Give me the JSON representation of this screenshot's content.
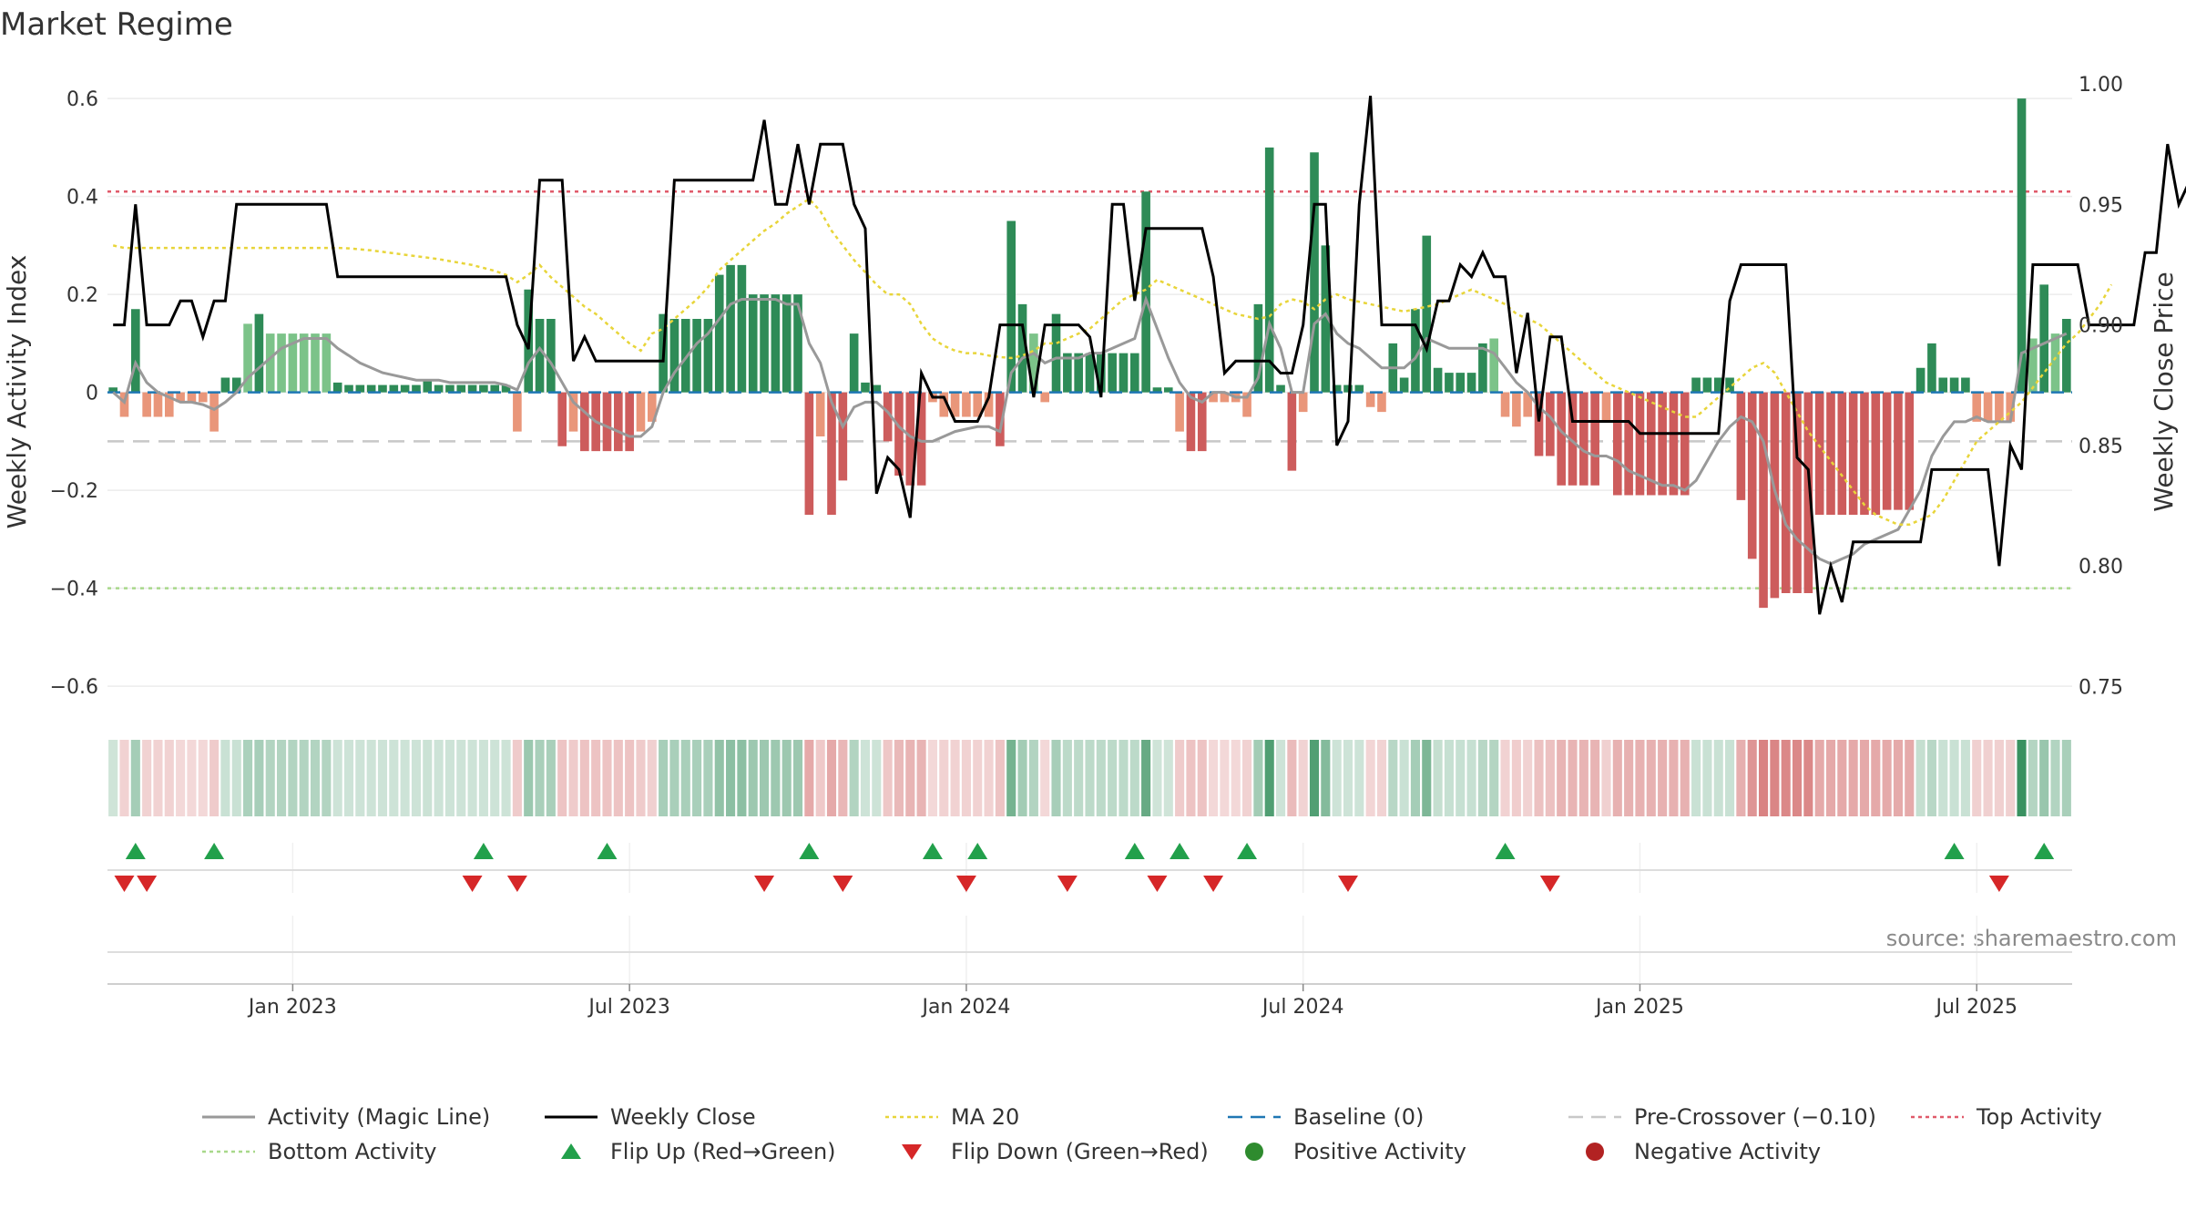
{
  "chart_data": {
    "type": "bar",
    "title": "Market Regime",
    "ylabel": "Weekly Activity Index",
    "y2label": "Weekly Close Price",
    "source": "source: sharemaestro.com",
    "ylim": [
      -0.65,
      0.63
    ],
    "y2lim": [
      0.74,
      1.0
    ],
    "yticks": [
      {
        "v": 0.6,
        "label": "0.6"
      },
      {
        "v": 0.4,
        "label": "0.4"
      },
      {
        "v": 0.2,
        "label": "0.2"
      },
      {
        "v": 0,
        "label": "0"
      },
      {
        "v": -0.2,
        "label": "−0.2"
      },
      {
        "v": -0.4,
        "label": "−0.4"
      },
      {
        "v": -0.6,
        "label": "−0.6"
      }
    ],
    "y2ticks": [
      {
        "v": 1.0,
        "label": "1.00"
      },
      {
        "v": 0.95,
        "label": "0.95"
      },
      {
        "v": 0.9,
        "label": "0.90"
      },
      {
        "v": 0.85,
        "label": "0.85"
      },
      {
        "v": 0.8,
        "label": "0.80"
      },
      {
        "v": 0.75,
        "label": "0.75"
      }
    ],
    "xticks": [
      {
        "i": 16,
        "label": "Jan 2023"
      },
      {
        "i": 46,
        "label": "Jul 2023"
      },
      {
        "i": 76,
        "label": "Jan 2024"
      },
      {
        "i": 106,
        "label": "Jul 2024"
      },
      {
        "i": 136,
        "label": "Jan 2025"
      },
      {
        "i": 166,
        "label": "Jul 2025"
      }
    ],
    "levels": {
      "top": 0.41,
      "bottom": -0.4,
      "pre_crossover": -0.1,
      "baseline": 0
    },
    "colors": {
      "strong_pos": "#2e8b57",
      "pos": "#7cc389",
      "strong_neg": "#cd5c5c",
      "neg": "#e9967a",
      "close": "#000000",
      "magic": "#999999",
      "ma": "#e8d53a",
      "top": "#e05a6a",
      "bottom": "#a8d88a",
      "pre": "#c8c8c8",
      "baseline": "#1f77b4",
      "flip_up": "#22a04b",
      "flip_down": "#d62728",
      "neg_marker": "#b22222"
    },
    "activity": [
      0.01,
      -0.05,
      0.17,
      -0.05,
      -0.05,
      -0.05,
      -0.02,
      -0.02,
      -0.02,
      -0.08,
      0.03,
      0.03,
      0.14,
      0.16,
      0.12,
      0.12,
      0.12,
      0.12,
      0.12,
      0.12,
      0.02,
      0.015,
      0.015,
      0.015,
      0.015,
      0.015,
      0.015,
      0.015,
      0.025,
      0.015,
      0.015,
      0.015,
      0.015,
      0.015,
      0.015,
      0.015,
      -0.08,
      0.21,
      0.15,
      0.15,
      -0.11,
      -0.08,
      -0.12,
      -0.12,
      -0.12,
      -0.12,
      -0.12,
      -0.08,
      -0.06,
      0.16,
      0.15,
      0.15,
      0.15,
      0.15,
      0.24,
      0.26,
      0.26,
      0.2,
      0.2,
      0.2,
      0.2,
      0.2,
      -0.25,
      -0.09,
      -0.25,
      -0.18,
      0.12,
      0.02,
      0.015,
      -0.1,
      -0.17,
      -0.19,
      -0.19,
      -0.02,
      -0.05,
      -0.05,
      -0.05,
      -0.05,
      -0.05,
      -0.11,
      0.35,
      0.18,
      0.12,
      -0.02,
      0.16,
      0.08,
      0.08,
      0.08,
      0.08,
      0.08,
      0.08,
      0.08,
      0.41,
      0.01,
      0.01,
      -0.08,
      -0.12,
      -0.12,
      -0.02,
      -0.02,
      -0.02,
      -0.05,
      0.18,
      0.5,
      0.015,
      -0.16,
      -0.04,
      0.49,
      0.3,
      0.015,
      0.015,
      0.015,
      -0.03,
      -0.04,
      0.1,
      0.03,
      0.17,
      0.32,
      0.05,
      0.04,
      0.04,
      0.04,
      0.1,
      0.11,
      -0.05,
      -0.07,
      -0.05,
      -0.13,
      -0.13,
      -0.19,
      -0.19,
      -0.19,
      -0.19,
      -0.06,
      -0.21,
      -0.21,
      -0.21,
      -0.21,
      -0.21,
      -0.21,
      -0.21,
      0.03,
      0.03,
      0.03,
      0.03,
      -0.22,
      -0.34,
      -0.44,
      -0.42,
      -0.41,
      -0.41,
      -0.41,
      -0.25,
      -0.25,
      -0.25,
      -0.25,
      -0.25,
      -0.25,
      -0.24,
      -0.24,
      -0.24,
      0.05,
      0.1,
      0.03,
      0.03,
      0.03,
      -0.06,
      -0.06,
      -0.06,
      -0.06,
      0.6,
      0.11,
      0.22,
      0.12,
      0.15
    ],
    "close": [
      0.9,
      0.9,
      0.95,
      0.9,
      0.9,
      0.9,
      0.91,
      0.91,
      0.895,
      0.91,
      0.91,
      0.95,
      0.95,
      0.95,
      0.95,
      0.95,
      0.95,
      0.95,
      0.95,
      0.95,
      0.92,
      0.92,
      0.92,
      0.92,
      0.92,
      0.92,
      0.92,
      0.92,
      0.92,
      0.92,
      0.92,
      0.92,
      0.92,
      0.92,
      0.92,
      0.92,
      0.9,
      0.89,
      0.96,
      0.96,
      0.96,
      0.885,
      0.895,
      0.885,
      0.885,
      0.885,
      0.885,
      0.885,
      0.885,
      0.885,
      0.96,
      0.96,
      0.96,
      0.96,
      0.96,
      0.96,
      0.96,
      0.96,
      0.985,
      0.95,
      0.95,
      0.975,
      0.95,
      0.975,
      0.975,
      0.975,
      0.95,
      0.94,
      0.83,
      0.845,
      0.84,
      0.82,
      0.88,
      0.87,
      0.87,
      0.86,
      0.86,
      0.86,
      0.87,
      0.9,
      0.9,
      0.9,
      0.87,
      0.9,
      0.9,
      0.9,
      0.9,
      0.895,
      0.87,
      0.95,
      0.95,
      0.91,
      0.94,
      0.94,
      0.94,
      0.94,
      0.94,
      0.94,
      0.92,
      0.88,
      0.885,
      0.885,
      0.885,
      0.885,
      0.88,
      0.88,
      0.9,
      0.95,
      0.95,
      0.85,
      0.86,
      0.95,
      0.995,
      0.9,
      0.9,
      0.9,
      0.9,
      0.89,
      0.91,
      0.91,
      0.925,
      0.92,
      0.93,
      0.92,
      0.92,
      0.88,
      0.905,
      0.86,
      0.895,
      0.895,
      0.86,
      0.86,
      0.86,
      0.86,
      0.86,
      0.86,
      0.855,
      0.855,
      0.855,
      0.855,
      0.855,
      0.855,
      0.855,
      0.855,
      0.91,
      0.925,
      0.925,
      0.925,
      0.925,
      0.925,
      0.845,
      0.84,
      0.78,
      0.8,
      0.785,
      0.81,
      0.81,
      0.81,
      0.81,
      0.81,
      0.81,
      0.81,
      0.84,
      0.84,
      0.84,
      0.84,
      0.84,
      0.84,
      0.8,
      0.85,
      0.84,
      0.925,
      0.925,
      0.925,
      0.925,
      0.925,
      0.9,
      0.9,
      0.9,
      0.9,
      0.9,
      0.93,
      0.93,
      0.975,
      0.95,
      0.96
    ],
    "magic": [
      0.0,
      -0.02,
      0.06,
      0.02,
      0.0,
      -0.01,
      -0.02,
      -0.02,
      -0.025,
      -0.035,
      -0.02,
      0.0,
      0.03,
      0.05,
      0.07,
      0.09,
      0.1,
      0.11,
      0.11,
      0.11,
      0.09,
      0.075,
      0.06,
      0.05,
      0.04,
      0.035,
      0.03,
      0.025,
      0.025,
      0.025,
      0.02,
      0.02,
      0.02,
      0.02,
      0.02,
      0.015,
      0.005,
      0.06,
      0.09,
      0.06,
      0.02,
      -0.02,
      -0.04,
      -0.06,
      -0.07,
      -0.08,
      -0.09,
      -0.09,
      -0.07,
      0.0,
      0.04,
      0.07,
      0.1,
      0.12,
      0.15,
      0.18,
      0.19,
      0.19,
      0.19,
      0.19,
      0.18,
      0.18,
      0.1,
      0.06,
      -0.02,
      -0.07,
      -0.03,
      -0.02,
      -0.02,
      -0.04,
      -0.07,
      -0.09,
      -0.1,
      -0.1,
      -0.09,
      -0.08,
      -0.075,
      -0.07,
      -0.07,
      -0.08,
      0.04,
      0.07,
      0.08,
      0.06,
      0.07,
      0.07,
      0.07,
      0.08,
      0.08,
      0.09,
      0.1,
      0.11,
      0.19,
      0.13,
      0.07,
      0.02,
      -0.01,
      -0.02,
      0.0,
      0.0,
      -0.01,
      -0.01,
      0.03,
      0.14,
      0.09,
      0.0,
      0.0,
      0.14,
      0.16,
      0.12,
      0.1,
      0.09,
      0.07,
      0.05,
      0.05,
      0.05,
      0.07,
      0.11,
      0.1,
      0.09,
      0.09,
      0.09,
      0.09,
      0.08,
      0.05,
      0.02,
      0.0,
      -0.03,
      -0.05,
      -0.08,
      -0.1,
      -0.12,
      -0.13,
      -0.13,
      -0.14,
      -0.16,
      -0.17,
      -0.18,
      -0.19,
      -0.19,
      -0.2,
      -0.18,
      -0.14,
      -0.1,
      -0.07,
      -0.05,
      -0.06,
      -0.1,
      -0.2,
      -0.27,
      -0.3,
      -0.32,
      -0.34,
      -0.35,
      -0.34,
      -0.33,
      -0.31,
      -0.3,
      -0.29,
      -0.28,
      -0.24,
      -0.2,
      -0.13,
      -0.09,
      -0.06,
      -0.06,
      -0.05,
      -0.06,
      -0.06,
      -0.06,
      0.08,
      0.09,
      0.1,
      0.11,
      0.12
    ],
    "ma": [
      0.3,
      0.295,
      0.295,
      0.295,
      0.295,
      0.295,
      0.295,
      0.295,
      0.295,
      0.295,
      0.295,
      0.295,
      0.295,
      0.295,
      0.295,
      0.295,
      0.295,
      0.295,
      0.295,
      0.295,
      0.295,
      0.294,
      0.292,
      0.29,
      0.287,
      0.284,
      0.281,
      0.278,
      0.275,
      0.272,
      0.268,
      0.264,
      0.26,
      0.254,
      0.248,
      0.24,
      0.225,
      0.24,
      0.26,
      0.235,
      0.215,
      0.195,
      0.175,
      0.16,
      0.14,
      0.12,
      0.1,
      0.085,
      0.12,
      0.13,
      0.15,
      0.17,
      0.19,
      0.215,
      0.25,
      0.27,
      0.29,
      0.31,
      0.33,
      0.345,
      0.365,
      0.38,
      0.395,
      0.37,
      0.33,
      0.3,
      0.27,
      0.245,
      0.22,
      0.2,
      0.2,
      0.18,
      0.14,
      0.11,
      0.095,
      0.085,
      0.08,
      0.08,
      0.075,
      0.072,
      0.07,
      0.075,
      0.085,
      0.1,
      0.1,
      0.11,
      0.12,
      0.13,
      0.15,
      0.17,
      0.19,
      0.2,
      0.21,
      0.23,
      0.22,
      0.21,
      0.2,
      0.19,
      0.18,
      0.17,
      0.16,
      0.155,
      0.15,
      0.155,
      0.18,
      0.19,
      0.185,
      0.17,
      0.19,
      0.2,
      0.19,
      0.185,
      0.18,
      0.175,
      0.17,
      0.165,
      0.17,
      0.175,
      0.18,
      0.19,
      0.2,
      0.21,
      0.2,
      0.19,
      0.18,
      0.16,
      0.15,
      0.14,
      0.12,
      0.1,
      0.08,
      0.06,
      0.04,
      0.02,
      0.01,
      0.0,
      -0.01,
      -0.02,
      -0.03,
      -0.04,
      -0.05,
      -0.05,
      -0.03,
      -0.01,
      0.01,
      0.03,
      0.05,
      0.06,
      0.04,
      0.0,
      -0.04,
      -0.08,
      -0.11,
      -0.14,
      -0.17,
      -0.2,
      -0.23,
      -0.25,
      -0.26,
      -0.27,
      -0.27,
      -0.26,
      -0.25,
      -0.22,
      -0.18,
      -0.14,
      -0.1,
      -0.08,
      -0.06,
      -0.04,
      -0.02,
      0.01,
      0.04,
      0.07,
      0.1,
      0.12,
      0.15,
      0.18,
      0.22
    ],
    "flip_up": [
      2,
      9,
      33,
      44,
      62,
      73,
      77,
      91,
      95,
      101,
      124,
      164,
      172
    ],
    "flip_down": [
      1,
      3,
      32,
      36,
      58,
      65,
      76,
      85,
      93,
      98,
      110,
      128,
      168
    ],
    "legend": [
      {
        "label": "Activity (Magic Line)",
        "kind": "line",
        "color": "#999999"
      },
      {
        "label": "Weekly Close",
        "kind": "line",
        "color": "#000000"
      },
      {
        "label": "MA 20",
        "kind": "dotted",
        "color": "#e8d53a"
      },
      {
        "label": "Baseline (0)",
        "kind": "dash",
        "color": "#1f77b4"
      },
      {
        "label": "Pre-Crossover (−0.10)",
        "kind": "dash",
        "color": "#c8c8c8"
      },
      {
        "label": "Top Activity",
        "kind": "dotted",
        "color": "#e05a6a"
      },
      {
        "label": "Bottom Activity",
        "kind": "dotted",
        "color": "#a8d88a"
      },
      {
        "label": "Flip Up (Red→Green)",
        "kind": "triup",
        "color": "#22a04b"
      },
      {
        "label": "Flip Down (Green→Red)",
        "kind": "tridown",
        "color": "#d62728"
      },
      {
        "label": "Positive Activity",
        "kind": "dot",
        "color": "#2e8b2e"
      },
      {
        "label": "Negative Activity",
        "kind": "dot",
        "color": "#b22222"
      }
    ]
  }
}
